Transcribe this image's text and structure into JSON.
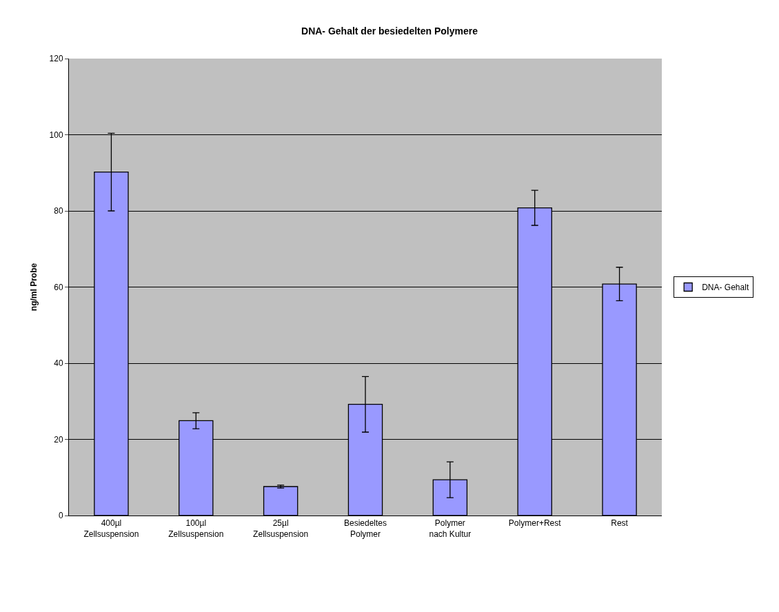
{
  "chart_data": {
    "type": "bar",
    "title": "DNA- Gehalt der besiedelten Polymere",
    "ylabel": "ng/ml Probe",
    "categories": [
      "400µl Zellsuspension",
      "100µl Zellsuspension",
      "25µl Zellsuspension",
      "Besiedeltes Polymer",
      "Polymer nach Kultur",
      "Polymer+Rest",
      "Rest"
    ],
    "series": [
      {
        "name": "DNA- Gehalt",
        "color": "#9999ff",
        "values": [
          90.2,
          24.9,
          7.6,
          29.2,
          9.4,
          80.8,
          60.8
        ],
        "errors": [
          10.2,
          2.1,
          0.4,
          7.3,
          4.7,
          4.6,
          4.4
        ]
      }
    ],
    "ylim": [
      0,
      120
    ],
    "yticks": [
      0,
      20,
      40,
      60,
      80,
      100,
      120
    ],
    "grid": "y",
    "legend": "right"
  }
}
